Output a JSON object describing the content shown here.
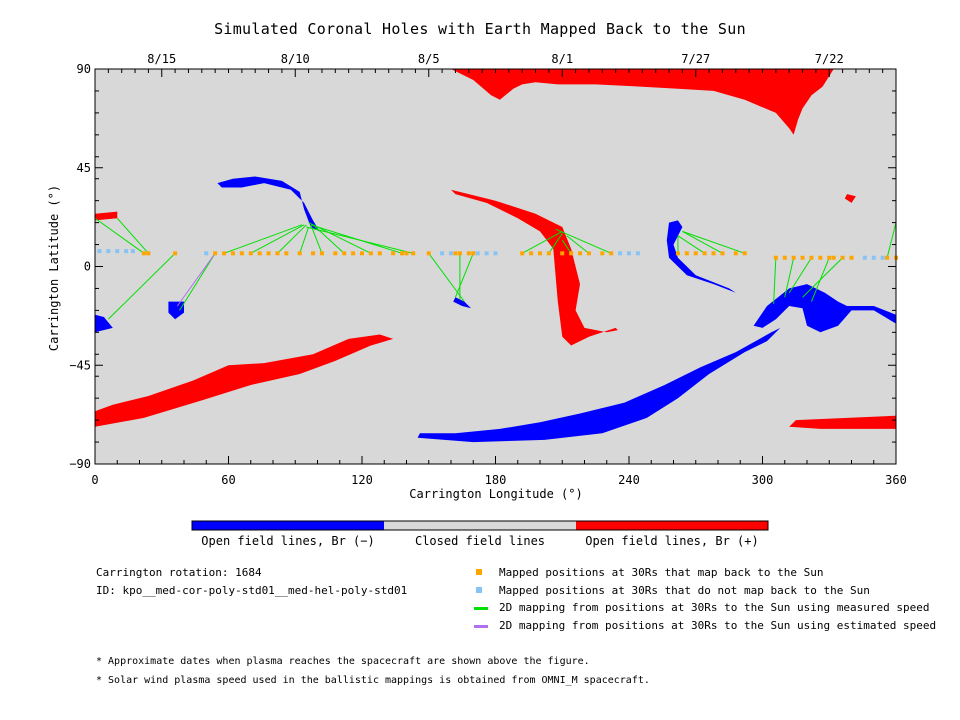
{
  "chart_data": {
    "type": "scatter",
    "title": "Simulated Coronal Holes with Earth Mapped Back to the Sun",
    "xlabel": "Carrington Longitude (°)",
    "ylabel": "Carrington Latitude (°)",
    "xlim": [
      0,
      360
    ],
    "ylim": [
      -90,
      90
    ],
    "x_ticks": [
      0,
      60,
      120,
      180,
      240,
      300,
      360
    ],
    "y_ticks": [
      90,
      45,
      0,
      -45,
      -90
    ],
    "x_tick_labels": [
      "0",
      "60",
      "120",
      "180",
      "240",
      "300",
      "360"
    ],
    "y_tick_labels": [
      "90",
      "45",
      "0",
      "−45",
      "−90"
    ],
    "top_axis_dates": [
      {
        "label": "8/15",
        "lon": 30
      },
      {
        "label": "8/10",
        "lon": 90
      },
      {
        "label": "8/5",
        "lon": 150
      },
      {
        "label": "8/1",
        "lon": 210
      },
      {
        "label": "7/27",
        "lon": 270
      },
      {
        "label": "7/22",
        "lon": 330
      }
    ],
    "background_color": "#d8d8d8",
    "colors": {
      "open_negative": "#0000ff",
      "closed": "#d8d8d8",
      "open_positive": "#ff0000",
      "mapped_back": "#ffa500",
      "not_mapped": "#87c3f5",
      "measured_speed_line": "#00e000",
      "estimated_speed_line": "#b070f0"
    },
    "series": [
      {
        "name": "Mapped positions at 30Rs that map back to the Sun",
        "points": [
          [
            22,
            6
          ],
          [
            24,
            6
          ],
          [
            36,
            6
          ],
          [
            54,
            6
          ],
          [
            58,
            6
          ],
          [
            62,
            6
          ],
          [
            66,
            6
          ],
          [
            70,
            6
          ],
          [
            74,
            6
          ],
          [
            78,
            6
          ],
          [
            82,
            6
          ],
          [
            86,
            6
          ],
          [
            92,
            6
          ],
          [
            98,
            6
          ],
          [
            102,
            6
          ],
          [
            108,
            6
          ],
          [
            112,
            6
          ],
          [
            116,
            6
          ],
          [
            120,
            6
          ],
          [
            124,
            6
          ],
          [
            128,
            6
          ],
          [
            134,
            6
          ],
          [
            138,
            6
          ],
          [
            140,
            6
          ],
          [
            143,
            6
          ],
          [
            150,
            6
          ],
          [
            162,
            6
          ],
          [
            164,
            6
          ],
          [
            168,
            6
          ],
          [
            170,
            6
          ],
          [
            192,
            6
          ],
          [
            196,
            6
          ],
          [
            200,
            6
          ],
          [
            204,
            6
          ],
          [
            210,
            6
          ],
          [
            214,
            6
          ],
          [
            218,
            6
          ],
          [
            222,
            6
          ],
          [
            228,
            6
          ],
          [
            232,
            6
          ],
          [
            262,
            6
          ],
          [
            266,
            6
          ],
          [
            270,
            6
          ],
          [
            274,
            6
          ],
          [
            278,
            6
          ],
          [
            282,
            6
          ],
          [
            288,
            6
          ],
          [
            292,
            6
          ],
          [
            306,
            4
          ],
          [
            310,
            4
          ],
          [
            314,
            4
          ],
          [
            318,
            4
          ],
          [
            322,
            4
          ],
          [
            326,
            4
          ],
          [
            330,
            4
          ],
          [
            332,
            4
          ],
          [
            336,
            4
          ],
          [
            340,
            4
          ],
          [
            356,
            4
          ],
          [
            360,
            4
          ]
        ]
      },
      {
        "name": "Mapped positions at 30Rs that do not map back to the Sun",
        "points": [
          [
            2,
            7
          ],
          [
            6,
            7
          ],
          [
            10,
            7
          ],
          [
            14,
            7
          ],
          [
            17,
            7
          ],
          [
            50,
            6
          ],
          [
            156,
            6
          ],
          [
            160,
            6
          ],
          [
            172,
            6
          ],
          [
            176,
            6
          ],
          [
            180,
            6
          ],
          [
            236,
            6
          ],
          [
            240,
            6
          ],
          [
            244,
            6
          ],
          [
            346,
            4
          ],
          [
            350,
            4
          ],
          [
            354,
            4
          ]
        ]
      },
      {
        "name": "2D mapping from positions at 30Rs to the Sun using measured speed",
        "lines": [
          [
            [
              22,
              6
            ],
            [
              0,
              22
            ]
          ],
          [
            [
              24,
              6
            ],
            [
              10,
              22
            ]
          ],
          [
            [
              36,
              6
            ],
            [
              6,
              -24
            ]
          ],
          [
            [
              54,
              6
            ],
            [
              38,
              -20
            ]
          ],
          [
            [
              58,
              6
            ],
            [
              93,
              19
            ]
          ],
          [
            [
              70,
              6
            ],
            [
              94,
              19
            ]
          ],
          [
            [
              82,
              6
            ],
            [
              95,
              19
            ]
          ],
          [
            [
              92,
              6
            ],
            [
              96,
              18
            ]
          ],
          [
            [
              102,
              6
            ],
            [
              97,
              19
            ]
          ],
          [
            [
              112,
              6
            ],
            [
              98,
              19
            ]
          ],
          [
            [
              124,
              6
            ],
            [
              96,
              20
            ]
          ],
          [
            [
              138,
              6
            ],
            [
              97,
              19
            ]
          ],
          [
            [
              143,
              6
            ],
            [
              95,
              18
            ]
          ],
          [
            [
              150,
              6
            ],
            [
              166,
              -16
            ]
          ],
          [
            [
              164,
              6
            ],
            [
              164,
              -15
            ]
          ],
          [
            [
              170,
              6
            ],
            [
              162,
              -14
            ]
          ],
          [
            [
              192,
              6
            ],
            [
              210,
              16
            ]
          ],
          [
            [
              204,
              6
            ],
            [
              210,
              15
            ]
          ],
          [
            [
              214,
              6
            ],
            [
              210,
              12
            ]
          ],
          [
            [
              222,
              6
            ],
            [
              212,
              14
            ]
          ],
          [
            [
              232,
              6
            ],
            [
              207,
              17
            ]
          ],
          [
            [
              262,
              6
            ],
            [
              262,
              14
            ]
          ],
          [
            [
              274,
              6
            ],
            [
              262,
              14
            ]
          ],
          [
            [
              282,
              6
            ],
            [
              264,
              16
            ]
          ],
          [
            [
              292,
              6
            ],
            [
              264,
              16
            ]
          ],
          [
            [
              306,
              4
            ],
            [
              305,
              -17
            ]
          ],
          [
            [
              314,
              4
            ],
            [
              310,
              -14
            ]
          ],
          [
            [
              322,
              4
            ],
            [
              312,
              -12
            ]
          ],
          [
            [
              330,
              4
            ],
            [
              322,
              -16
            ]
          ],
          [
            [
              336,
              4
            ],
            [
              318,
              -14
            ]
          ],
          [
            [
              356,
              4
            ],
            [
              360,
              20
            ]
          ],
          [
            [
              360,
              4
            ],
            [
              360,
              22
            ]
          ]
        ]
      },
      {
        "name": "2D mapping from positions at 30Rs to the Sun using estimated speed",
        "lines": [
          [
            [
              54,
              6
            ],
            [
              37,
              -18
            ]
          ]
        ]
      }
    ],
    "colorbar": [
      {
        "label": "Open field lines, Br (−)",
        "color": "#0000ff"
      },
      {
        "label": "Closed field lines",
        "color": "#d8d8d8"
      },
      {
        "label": "Open field lines, Br (+)",
        "color": "#ff0000"
      }
    ]
  },
  "info": {
    "rotation": "Carrington rotation: 1684",
    "id": "ID: kpo__med-cor-poly-std01__med-hel-poly-std01"
  },
  "legend": [
    {
      "kind": "square",
      "color": "#ffa500",
      "label": "Mapped positions at 30Rs that map back to the Sun"
    },
    {
      "kind": "square",
      "color": "#87c3f5",
      "label": "Mapped positions at 30Rs that do not map back to the Sun"
    },
    {
      "kind": "line",
      "color": "#00e000",
      "label": "2D mapping from positions at 30Rs to the Sun using measured speed"
    },
    {
      "kind": "line",
      "color": "#b070f0",
      "label": "2D mapping from positions at 30Rs to the Sun using estimated speed"
    }
  ],
  "footnotes": [
    "* Approximate dates when plasma reaches the spacecraft are shown above the figure.",
    "* Solar wind plasma speed used in the ballistic mappings is obtained from OMNI_M spacecraft."
  ]
}
